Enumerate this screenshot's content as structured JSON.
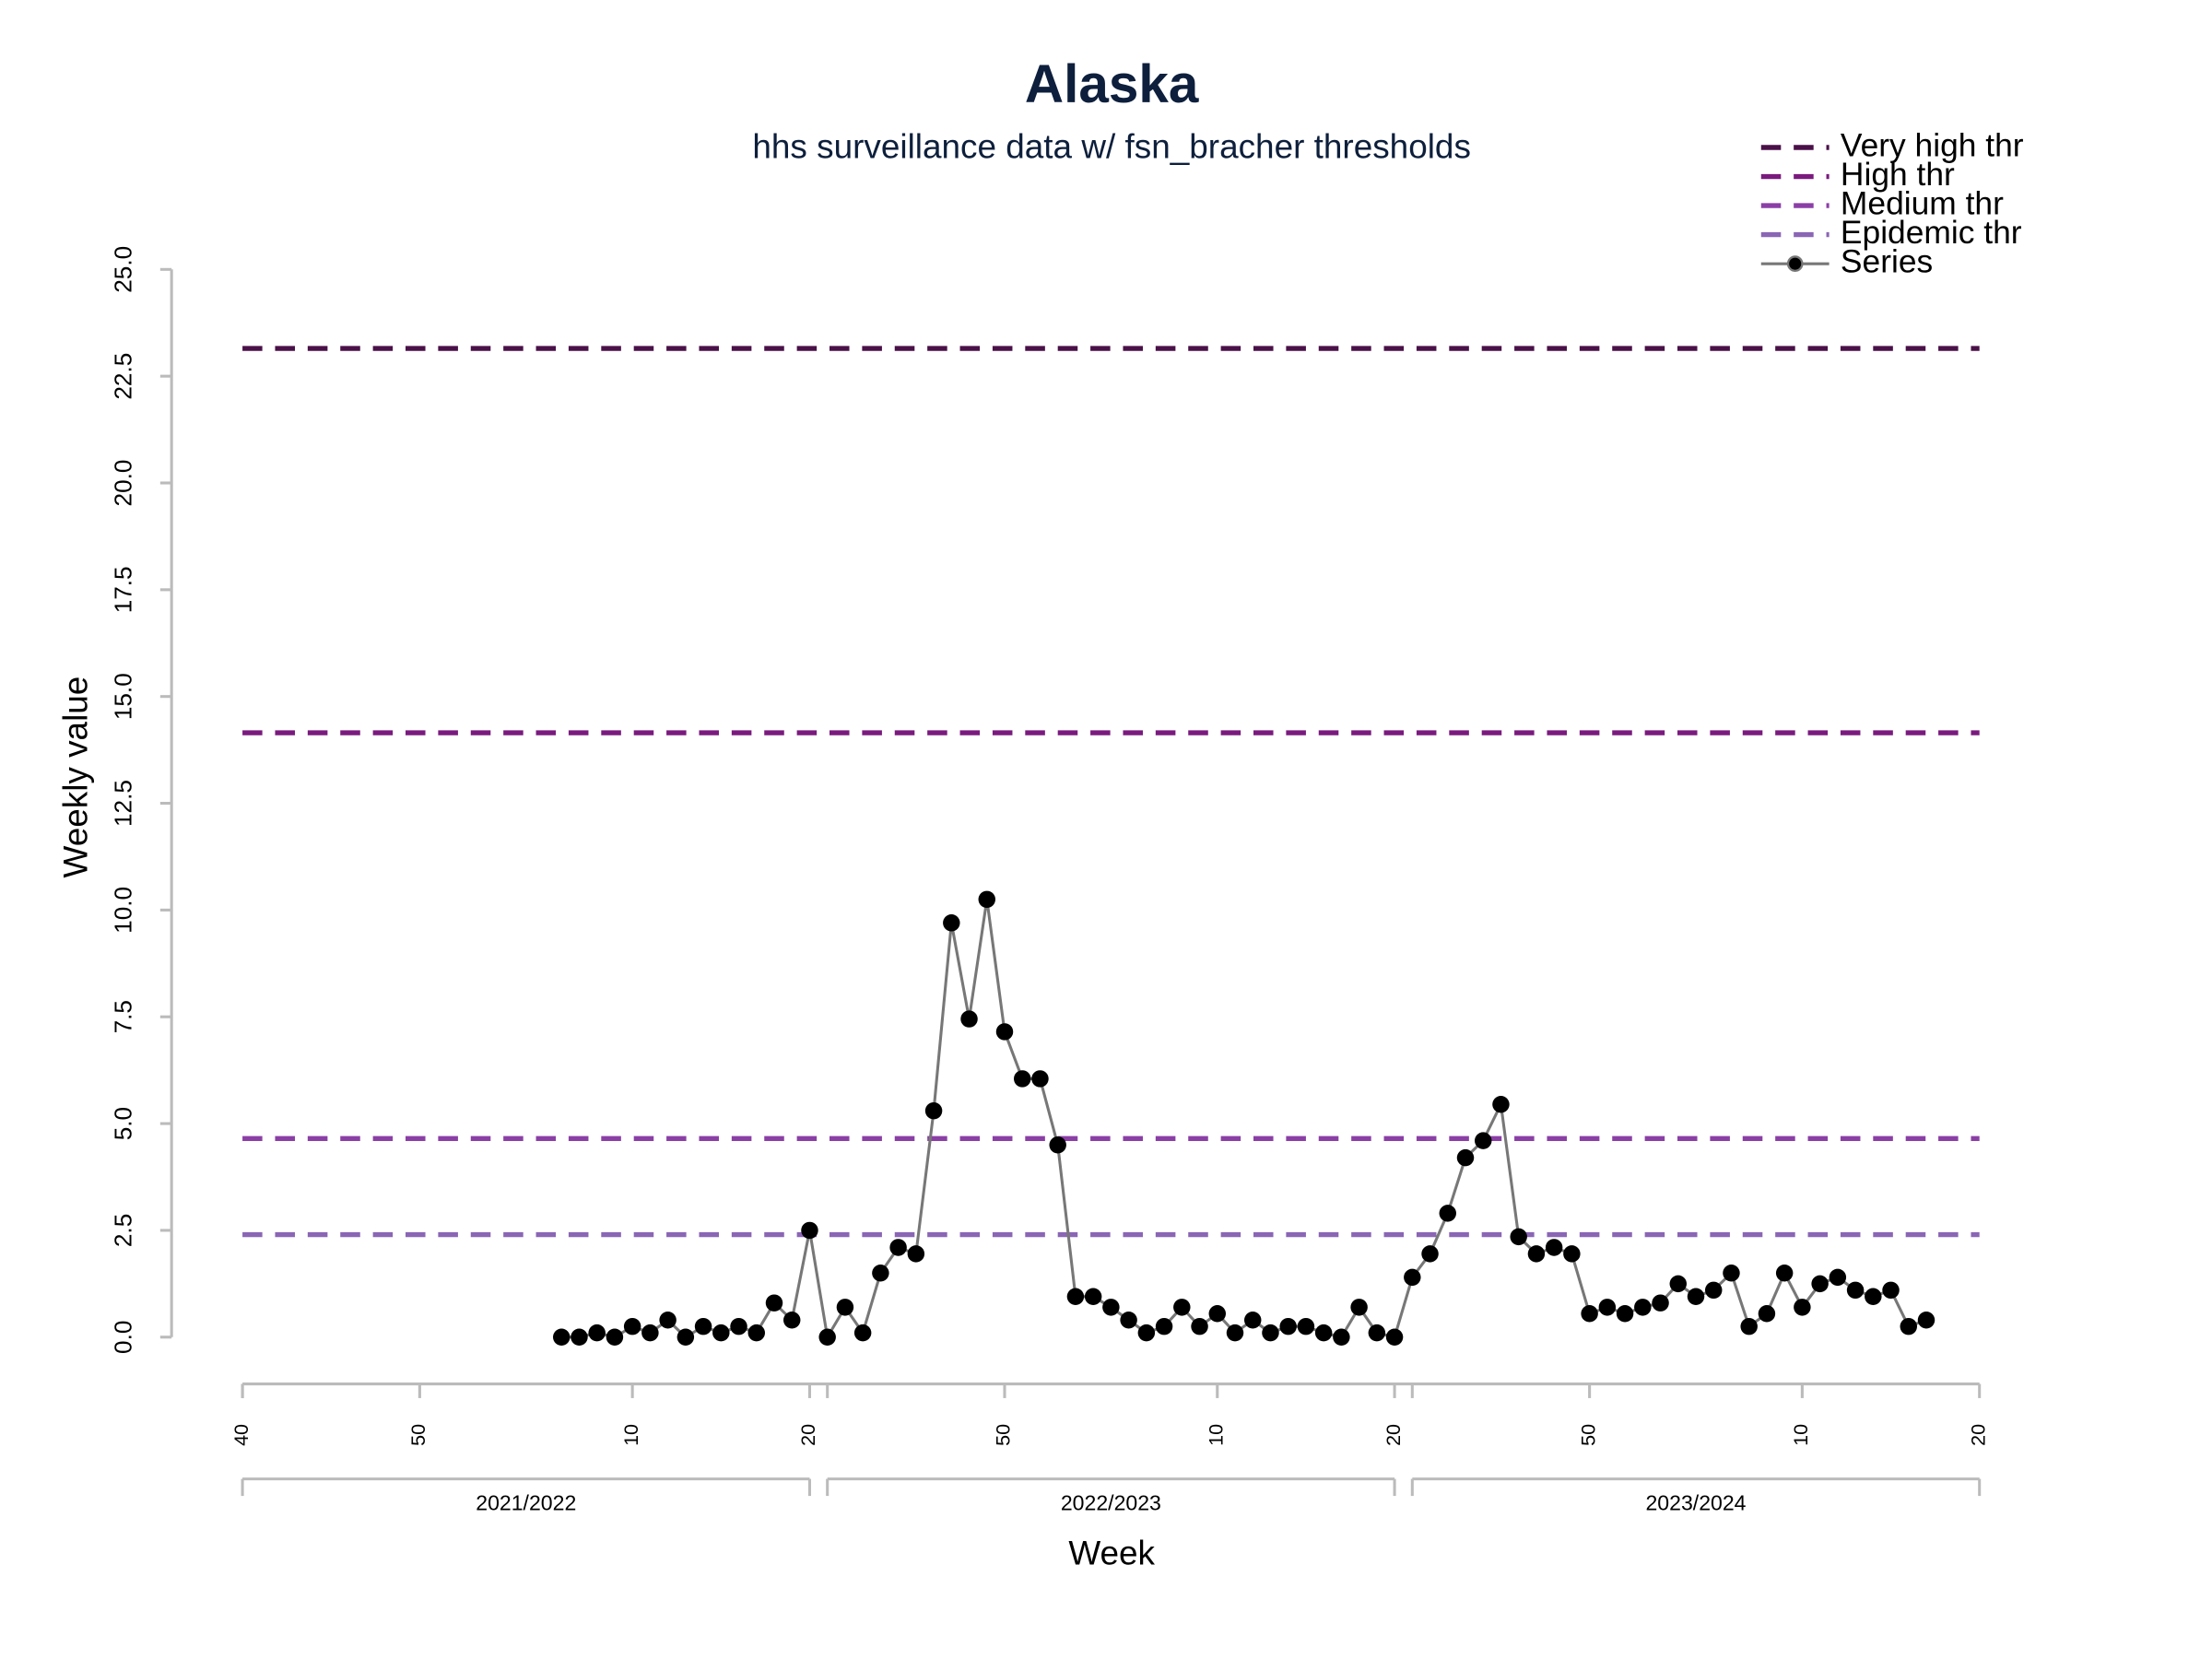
{
  "chart_data": {
    "type": "line",
    "title": "Alaska",
    "subtitle": "hhs surveillance data w/ fsn_bracher thresholds",
    "xlabel": "Week",
    "ylabel": "Weekly value",
    "xlim": [
      0,
      98
    ],
    "ylim": [
      0,
      25
    ],
    "yticks": [
      {
        "value": 0,
        "label": "0.0"
      },
      2.5,
      {
        "value": 5,
        "label": "5.0"
      },
      7.5,
      {
        "value": 10,
        "label": "10.0"
      },
      12.5,
      {
        "value": 15,
        "label": "15.0"
      },
      17.5,
      {
        "value": 20,
        "label": "20.0"
      },
      22.5,
      {
        "value": 25,
        "label": "25.0"
      }
    ],
    "xticks": [
      {
        "value": 0,
        "label": "40"
      },
      {
        "value": 10,
        "label": "50"
      },
      {
        "value": 22,
        "label": "10"
      },
      {
        "value": 32,
        "label": "20"
      },
      {
        "value": 43,
        "label": "50"
      },
      {
        "value": 55,
        "label": "10"
      },
      {
        "value": 65,
        "label": "20"
      },
      {
        "value": 76,
        "label": "50"
      },
      {
        "value": 88,
        "label": "10"
      },
      {
        "value": 98,
        "label": "20"
      }
    ],
    "seasons": [
      {
        "label": "2021/2022",
        "start": 0,
        "end": 32
      },
      {
        "label": "2022/2023",
        "start": 33,
        "end": 65
      },
      {
        "label": "2023/2024",
        "start": 66,
        "end": 98
      }
    ],
    "thresholds": [
      {
        "name": "Very high thr",
        "color": "#4a1048",
        "value": 23.15
      },
      {
        "name": "High thr",
        "color": "#7a1a7e",
        "value": 14.15
      },
      {
        "name": "Medium thr",
        "color": "#8b3fa6",
        "value": 4.65
      },
      {
        "name": "Epidemic thr",
        "color": "#8a66b5",
        "value": 2.4
      }
    ],
    "series": [
      {
        "name": "Series",
        "color": "#000000",
        "line_color": "#777777",
        "x": [
          18,
          19,
          20,
          21,
          22,
          23,
          24,
          25,
          26,
          27,
          28,
          29,
          30,
          31,
          32,
          33,
          34,
          35,
          36,
          37,
          38,
          39,
          40,
          41,
          42,
          43,
          44,
          45,
          46,
          47,
          48,
          49,
          50,
          51,
          52,
          53,
          54,
          55,
          56,
          57,
          58,
          59,
          60,
          61,
          62,
          63,
          64,
          65,
          66,
          67,
          68,
          69,
          70,
          71,
          72,
          73,
          74,
          75,
          76,
          77,
          78,
          79,
          80,
          81,
          82,
          83,
          84,
          85,
          86,
          87,
          88,
          89,
          90,
          91,
          92,
          93,
          94,
          95
        ],
        "values": [
          0.0,
          0.0,
          0.1,
          0.0,
          0.25,
          0.1,
          0.4,
          0.0,
          0.25,
          0.1,
          0.25,
          0.1,
          0.8,
          0.4,
          2.5,
          0.0,
          0.7,
          0.1,
          1.5,
          2.1,
          1.95,
          5.3,
          9.7,
          7.45,
          10.25,
          7.15,
          6.05,
          6.05,
          4.5,
          0.95,
          0.95,
          0.7,
          0.4,
          0.1,
          0.25,
          0.7,
          0.25,
          0.55,
          0.1,
          0.4,
          0.1,
          0.25,
          0.25,
          0.1,
          0.0,
          0.7,
          0.1,
          0.0,
          1.4,
          1.95,
          2.9,
          4.2,
          4.6,
          5.45,
          2.35,
          1.95,
          2.1,
          1.95,
          0.55,
          0.7,
          0.55,
          0.7,
          0.8,
          1.25,
          0.95,
          1.1,
          1.5,
          0.25,
          0.55,
          1.5,
          0.7,
          1.25,
          1.4,
          1.1,
          0.95,
          1.1,
          0.25,
          0.4
        ]
      }
    ]
  }
}
